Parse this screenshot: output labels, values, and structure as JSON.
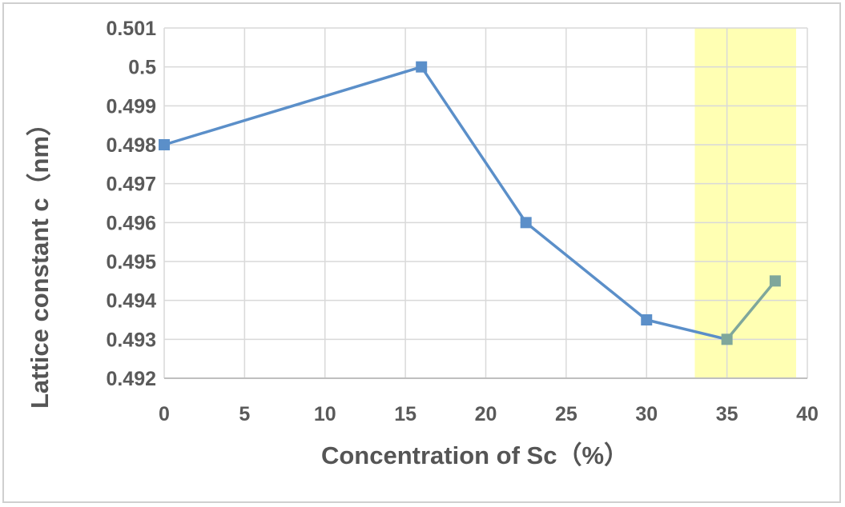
{
  "chart_data": {
    "type": "line",
    "title": "",
    "xlabel": "Concentration of Sc（%）",
    "ylabel": "Lattice constant c（nm）",
    "xlim": [
      0,
      40
    ],
    "ylim": [
      0.492,
      0.501
    ],
    "x_ticks": [
      "0",
      "5",
      "10",
      "15",
      "20",
      "25",
      "30",
      "35",
      "40"
    ],
    "y_ticks": [
      "0.501",
      "0.5",
      "0.499",
      "0.498",
      "0.497",
      "0.496",
      "0.495",
      "0.494",
      "0.493",
      "0.492"
    ],
    "grid": true,
    "series": [
      {
        "x": [
          0,
          16,
          22.5,
          30,
          35,
          38
        ],
        "values": [
          0.498,
          0.5,
          0.496,
          0.4935,
          0.493,
          0.4945
        ],
        "color": "#5b8fc9",
        "marker": "square"
      }
    ],
    "highlight": {
      "x_range": [
        33,
        39.3
      ],
      "color": "#ffffb3"
    },
    "colors": {
      "series": "#5b8fc9",
      "highlighted_series": "#7fa79b",
      "grid": "#d9d9d9",
      "axis": "#bfbfbf"
    }
  }
}
